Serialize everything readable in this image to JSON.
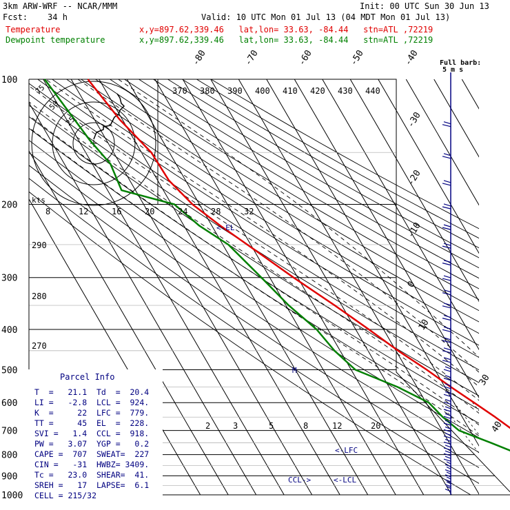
{
  "header": {
    "model": "3km ARW-WRF -- NCAR/MMM",
    "init": "Init: 00 UTC Sun 30 Jun 13",
    "fcst": "Fcst:    34 h",
    "valid": "Valid: 10 UTC Mon 01 Jul 13 (04 MDT Mon 01 Jul 13)",
    "temp_label": "Temperature",
    "temp_info": "x,y=897.62,339.46   lat,lon= 33.63, -84.44   stn=ATL ,72219",
    "dew_label": "Dewpoint temperature",
    "dew_info": "x,y=897.62,339.46   lat,lon= 33.63, -84.44   stn=ATL ,72219"
  },
  "colors": {
    "temperature": "#e00000",
    "dewpoint": "#008000",
    "parcel_text": "#000080",
    "wind_barbs": "#000080"
  },
  "pressure_labels": [
    "100",
    "200",
    "300",
    "400",
    "500",
    "600",
    "700",
    "800",
    "900",
    "1000"
  ],
  "isotherm_top_labels": [
    "-80",
    "-70",
    "-60",
    "-50",
    "-40"
  ],
  "isotherm_right_labels": [
    "-30",
    "-20",
    "-10",
    "0",
    "10",
    "30",
    "40"
  ],
  "theta_labels": [
    "370",
    "380",
    "390",
    "400",
    "410",
    "420",
    "430",
    "440"
  ],
  "theta_left_labels": [
    "290",
    "280",
    "270"
  ],
  "hodo_speed_labels": [
    "8",
    "12",
    "16",
    "20",
    "24",
    "28",
    "32"
  ],
  "hodo_ring_labels": [
    "75",
    "50",
    "25"
  ],
  "hodo_kts": "kts",
  "mixing_ratio_labels": [
    "2",
    "3",
    "5",
    "8",
    "12",
    "20"
  ],
  "barb_legend": {
    "line1": "Full barb:",
    "line2": "5 m s"
  },
  "annotations": {
    "el": "<-EL",
    "lfc": "<-LFC",
    "lcl": "<-LCL",
    "ccl": "CCL->",
    "m": "M"
  },
  "parcel_info": {
    "title": "Parcel Info",
    "rows": [
      "T  =   21.1  Td  =  20.4",
      "LI =   -2.8  LCL =  924.",
      "K  =     22  LFC =  779.",
      "TT =     45  EL  =  228.",
      "SVI =   1.4  CCL =  918.",
      "PW =   3.07  YGP =   0.2",
      "CAPE =  707  SWEAT=  227",
      "CIN =   -31  HWBZ= 3409.",
      "Tc =   23.0  SHEAR=  41.",
      "SREH =   17  LAPSE=  6.1",
      "CELL = 215/32"
    ]
  },
  "chart_data": {
    "type": "line",
    "title": "3km ARW-WRF -- NCAR/MMM",
    "xlabel": "",
    "ylabel": "",
    "y_scale": "log pressure",
    "ylim": [
      1000,
      100
    ],
    "series": [
      {
        "name": "Temperature",
        "pressure": [
          1000,
          975,
          950,
          925,
          900,
          850,
          800,
          750,
          700,
          650,
          600,
          550,
          500,
          450,
          400,
          350,
          300,
          250,
          225,
          200,
          175,
          150,
          125,
          100
        ],
        "values": [
          21.1,
          21.8,
          21.5,
          20.0,
          18.4,
          15.4,
          12.3,
          9.3,
          5.6,
          1.8,
          -2.8,
          -7.9,
          -12.9,
          -19.2,
          -25.3,
          -32.5,
          -41.5,
          -51.2,
          -57.0,
          -62.5,
          -66.0,
          -66.5,
          -71.0,
          -74.0
        ]
      },
      {
        "name": "Dewpoint temperature",
        "pressure": [
          1000,
          975,
          950,
          925,
          900,
          850,
          800,
          750,
          700,
          650,
          600,
          550,
          500,
          450,
          400,
          350,
          300,
          250,
          225,
          200,
          185,
          160,
          140,
          100
        ],
        "values": [
          20.4,
          19.9,
          19.5,
          18.1,
          16.0,
          12.0,
          3.0,
          -5.0,
          -14.0,
          -17.0,
          -19.0,
          -27.0,
          -38.5,
          -42.0,
          -44.0,
          -49.0,
          -53.0,
          -58.0,
          -64.5,
          -69.0,
          -85.0,
          -83.5,
          -86.0,
          -89.5
        ]
      }
    ]
  }
}
